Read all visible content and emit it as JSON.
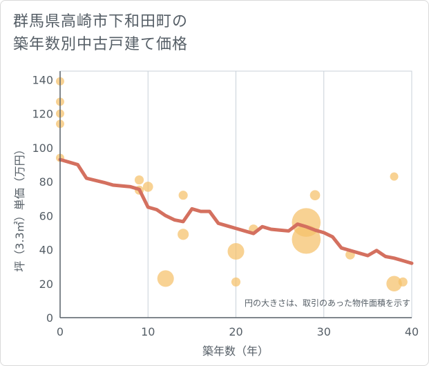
{
  "header": {
    "title_line1": "群馬県高崎市下和田町の",
    "title_line2": "築年数別中古戸建て価格"
  },
  "chart_data": {
    "type": "scatter",
    "xlabel": "築年数（年）",
    "ylabel": "坪（3.3㎡）単価（万円）",
    "xlim": [
      0,
      40
    ],
    "ylim": [
      0,
      145
    ],
    "x_ticks": [
      "0",
      "10",
      "20",
      "30",
      "40"
    ],
    "y_ticks": [
      "0",
      "20",
      "40",
      "60",
      "80",
      "100",
      "120",
      "140"
    ],
    "x_tick_values": [
      0,
      10,
      20,
      30,
      40
    ],
    "y_tick_values": [
      0,
      20,
      40,
      60,
      80,
      100,
      120,
      140
    ],
    "grid": true,
    "annotation": "円の大きさは、取引のあった物件面積を示す",
    "colors": {
      "bubble": "#f5c169",
      "line": "#d4705f",
      "grid": "#c8d0d8"
    },
    "points": [
      {
        "x": 0,
        "y": 139,
        "size": 1
      },
      {
        "x": 0,
        "y": 127,
        "size": 1
      },
      {
        "x": 0,
        "y": 120,
        "size": 1
      },
      {
        "x": 0,
        "y": 114,
        "size": 1
      },
      {
        "x": 0,
        "y": 94,
        "size": 1
      },
      {
        "x": 9,
        "y": 81,
        "size": 1.2
      },
      {
        "x": 9,
        "y": 75,
        "size": 1.2
      },
      {
        "x": 10,
        "y": 77,
        "size": 1.5
      },
      {
        "x": 12,
        "y": 23,
        "size": 4
      },
      {
        "x": 14,
        "y": 72,
        "size": 1.2
      },
      {
        "x": 14,
        "y": 49,
        "size": 1.8
      },
      {
        "x": 20,
        "y": 39,
        "size": 4
      },
      {
        "x": 20,
        "y": 21,
        "size": 1.2
      },
      {
        "x": 22,
        "y": 52,
        "size": 1.3
      },
      {
        "x": 28,
        "y": 56,
        "size": 12
      },
      {
        "x": 28,
        "y": 46,
        "size": 12
      },
      {
        "x": 29,
        "y": 72,
        "size": 1.5
      },
      {
        "x": 33,
        "y": 37,
        "size": 1.3
      },
      {
        "x": 38,
        "y": 83,
        "size": 1
      },
      {
        "x": 38,
        "y": 20,
        "size": 3.5
      },
      {
        "x": 39,
        "y": 21,
        "size": 1.2
      }
    ],
    "trend_line": {
      "x": [
        0,
        2,
        3,
        5,
        6,
        8,
        9,
        10,
        11,
        12,
        13,
        14,
        15,
        16,
        17,
        18,
        19,
        20,
        21,
        22,
        23,
        24,
        25,
        26,
        27,
        28,
        29,
        30,
        31,
        32,
        33,
        34,
        35,
        36,
        37,
        38,
        39,
        40
      ],
      "y": [
        93,
        90,
        82,
        79.5,
        78,
        77,
        75.5,
        65,
        63.5,
        60,
        57.5,
        56.5,
        64,
        62.5,
        62.5,
        55.5,
        54,
        52.5,
        51,
        49.5,
        53.5,
        52,
        51.5,
        51,
        55,
        53.5,
        51.5,
        50,
        47.5,
        41,
        39.5,
        38,
        36.5,
        39.5,
        36,
        35,
        33.5,
        32
      ]
    }
  }
}
